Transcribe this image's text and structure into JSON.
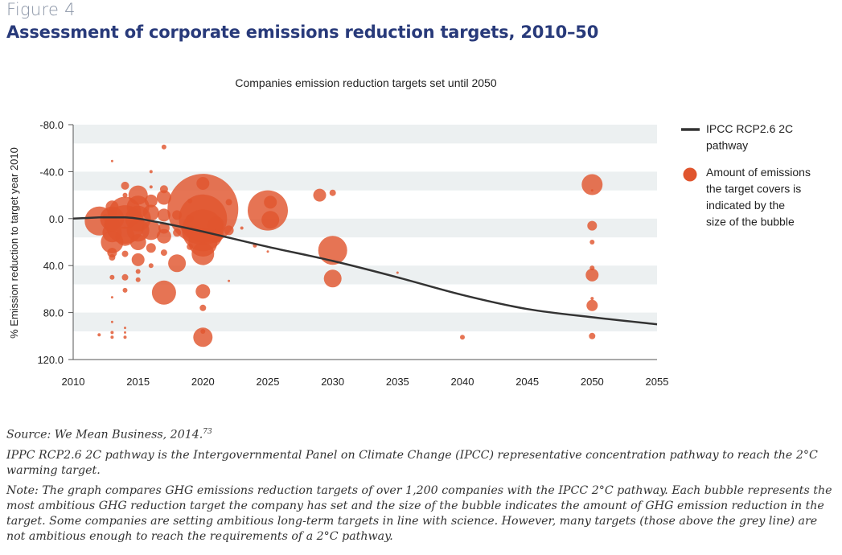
{
  "figure_label": "Figure 4",
  "figure_title": "Assessment of corporate emissions reduction targets, 2010–50",
  "chart_data": {
    "type": "scatter",
    "title": "Companies emission reduction targets set until 2050",
    "xlabel": "",
    "ylabel": "% Emission reduction to target year 2010",
    "xlim": [
      2010,
      2055
    ],
    "ylim": [
      -80,
      120
    ],
    "y_inverted": true,
    "x_ticks": [
      "2010",
      "2015",
      "2020",
      "2025",
      "2030",
      "2035",
      "2040",
      "2045",
      "2050",
      "2055"
    ],
    "y_ticks": [
      "-80.0",
      "-40.0",
      "0.0",
      "40.0",
      "80.0",
      "120.0"
    ],
    "grid": "alternating horizontal bands",
    "legend_placement": "right",
    "legend": {
      "line_label": "IPCC RCP2.6 2C pathway",
      "bubble_label": "Amount of emissions the target covers is indicated by the size of the bubble"
    },
    "colors": {
      "bubble": "#e0552e",
      "line": "#333333",
      "band": "#ecf0f1"
    },
    "pathway": {
      "name": "IPCC RCP2.6 2C pathway",
      "x": [
        2010,
        2012,
        2013,
        2014,
        2015,
        2017,
        2020,
        2025,
        2030,
        2035,
        2040,
        2045,
        2050,
        2055
      ],
      "y": [
        0,
        -1,
        -1,
        -1,
        0,
        4,
        11,
        24,
        36,
        50,
        65,
        77,
        84,
        90
      ]
    },
    "bubbles": [
      {
        "x": 2012,
        "y": 2,
        "r": 18
      },
      {
        "x": 2012,
        "y": 99,
        "r": 2
      },
      {
        "x": 2012.5,
        "y": -1,
        "r": 4
      },
      {
        "x": 2013,
        "y": -49,
        "r": 1.5
      },
      {
        "x": 2013,
        "y": -10,
        "r": 8
      },
      {
        "x": 2013,
        "y": -5,
        "r": 6
      },
      {
        "x": 2013,
        "y": 0,
        "r": 15
      },
      {
        "x": 2013,
        "y": 5,
        "r": 10
      },
      {
        "x": 2013,
        "y": 12,
        "r": 12
      },
      {
        "x": 2013,
        "y": 20,
        "r": 14
      },
      {
        "x": 2013,
        "y": 29,
        "r": 6
      },
      {
        "x": 2013,
        "y": 33,
        "r": 4
      },
      {
        "x": 2013,
        "y": 50,
        "r": 3
      },
      {
        "x": 2013,
        "y": 67,
        "r": 1.5
      },
      {
        "x": 2013,
        "y": 88,
        "r": 1.5
      },
      {
        "x": 2013,
        "y": 97,
        "r": 2
      },
      {
        "x": 2013,
        "y": 101,
        "r": 2
      },
      {
        "x": 2014,
        "y": -28,
        "r": 5
      },
      {
        "x": 2014,
        "y": -20,
        "r": 3
      },
      {
        "x": 2014,
        "y": -5,
        "r": 20
      },
      {
        "x": 2014,
        "y": 5,
        "r": 24
      },
      {
        "x": 2014,
        "y": 15,
        "r": 12
      },
      {
        "x": 2014,
        "y": 30,
        "r": 4
      },
      {
        "x": 2014,
        "y": 50,
        "r": 4
      },
      {
        "x": 2014,
        "y": 61,
        "r": 3
      },
      {
        "x": 2014,
        "y": 93,
        "r": 1.5
      },
      {
        "x": 2014,
        "y": 97,
        "r": 1.5
      },
      {
        "x": 2014,
        "y": 101,
        "r": 2
      },
      {
        "x": 2015,
        "y": -20,
        "r": 12
      },
      {
        "x": 2015,
        "y": -10,
        "r": 14
      },
      {
        "x": 2015,
        "y": 0,
        "r": 16
      },
      {
        "x": 2015,
        "y": 10,
        "r": 14
      },
      {
        "x": 2015,
        "y": 20,
        "r": 10
      },
      {
        "x": 2015,
        "y": 35,
        "r": 8
      },
      {
        "x": 2015,
        "y": 45,
        "r": 3
      },
      {
        "x": 2015,
        "y": 52,
        "r": 3
      },
      {
        "x": 2016,
        "y": -40,
        "r": 2
      },
      {
        "x": 2016,
        "y": -27,
        "r": 2
      },
      {
        "x": 2016,
        "y": -15,
        "r": 8
      },
      {
        "x": 2016,
        "y": -5,
        "r": 10
      },
      {
        "x": 2016,
        "y": 10,
        "r": 12
      },
      {
        "x": 2016,
        "y": 25,
        "r": 6
      },
      {
        "x": 2016,
        "y": 40,
        "r": 3
      },
      {
        "x": 2017,
        "y": -61,
        "r": 3
      },
      {
        "x": 2017,
        "y": -25,
        "r": 5
      },
      {
        "x": 2017,
        "y": -18,
        "r": 9
      },
      {
        "x": 2017,
        "y": -3,
        "r": 8
      },
      {
        "x": 2017,
        "y": 8,
        "r": 7
      },
      {
        "x": 2017,
        "y": 15,
        "r": 9
      },
      {
        "x": 2017,
        "y": 29,
        "r": 4
      },
      {
        "x": 2017,
        "y": 63,
        "r": 15
      },
      {
        "x": 2018,
        "y": -3,
        "r": 6
      },
      {
        "x": 2018,
        "y": 12,
        "r": 5
      },
      {
        "x": 2018,
        "y": 38,
        "r": 11
      },
      {
        "x": 2019,
        "y": -15,
        "r": 3
      },
      {
        "x": 2019,
        "y": 0,
        "r": 5
      },
      {
        "x": 2019,
        "y": 10,
        "r": 6
      },
      {
        "x": 2019,
        "y": 24,
        "r": 4
      },
      {
        "x": 2020,
        "y": -30,
        "r": 8
      },
      {
        "x": 2020,
        "y": -8,
        "r": 44
      },
      {
        "x": 2020,
        "y": 0,
        "r": 30
      },
      {
        "x": 2020,
        "y": 10,
        "r": 26
      },
      {
        "x": 2020,
        "y": 20,
        "r": 18
      },
      {
        "x": 2020,
        "y": 30,
        "r": 14
      },
      {
        "x": 2020,
        "y": 62,
        "r": 9
      },
      {
        "x": 2020,
        "y": 76,
        "r": 4
      },
      {
        "x": 2020,
        "y": 96,
        "r": 3
      },
      {
        "x": 2020,
        "y": 101,
        "r": 12
      },
      {
        "x": 2021,
        "y": 5,
        "r": 10
      },
      {
        "x": 2021,
        "y": 15,
        "r": 8
      },
      {
        "x": 2022,
        "y": -14,
        "r": 4
      },
      {
        "x": 2022,
        "y": 10,
        "r": 6
      },
      {
        "x": 2022,
        "y": 53,
        "r": 1.5
      },
      {
        "x": 2023,
        "y": 8,
        "r": 2
      },
      {
        "x": 2024,
        "y": 23,
        "r": 2.5
      },
      {
        "x": 2025,
        "y": -7,
        "r": 25
      },
      {
        "x": 2025,
        "y": 28,
        "r": 1.5
      },
      {
        "x": 2025.2,
        "y": -14,
        "r": 8
      },
      {
        "x": 2025.2,
        "y": 1,
        "r": 11
      },
      {
        "x": 2029,
        "y": -20,
        "r": 8
      },
      {
        "x": 2030,
        "y": -22,
        "r": 4
      },
      {
        "x": 2030,
        "y": 27,
        "r": 18
      },
      {
        "x": 2030,
        "y": 51,
        "r": 11
      },
      {
        "x": 2035,
        "y": 46,
        "r": 1.5
      },
      {
        "x": 2040,
        "y": 101,
        "r": 3
      },
      {
        "x": 2050,
        "y": -29,
        "r": 13
      },
      {
        "x": 2050,
        "y": -24,
        "r": 1.5
      },
      {
        "x": 2050,
        "y": 6,
        "r": 6
      },
      {
        "x": 2050,
        "y": 20,
        "r": 3
      },
      {
        "x": 2050,
        "y": 42,
        "r": 3
      },
      {
        "x": 2050,
        "y": 48,
        "r": 8
      },
      {
        "x": 2050,
        "y": 68,
        "r": 2
      },
      {
        "x": 2050,
        "y": 74,
        "r": 7
      },
      {
        "x": 2050,
        "y": 100,
        "r": 4
      }
    ]
  },
  "notes": {
    "source": "Source: We Mean Business, 2014.",
    "source_ref": "73",
    "ippc": "IPPC RCP2.6 2C pathway is the Intergovernmental Panel on Climate Change (IPCC) representative concentration pathway to reach the 2°C warming target.",
    "note": "Note: The graph compares GHG emissions reduction targets of over 1,200 companies with the IPCC 2°C pathway. Each bubble represents the most ambitious GHG reduction target the company has set and the size of the bubble indicates the amount of GHG emission reduction in the target. Some companies are setting ambitious long-term targets in line with science. However, many targets (those above the grey line) are not ambitious enough to reach the requirements of a 2°C pathway."
  }
}
